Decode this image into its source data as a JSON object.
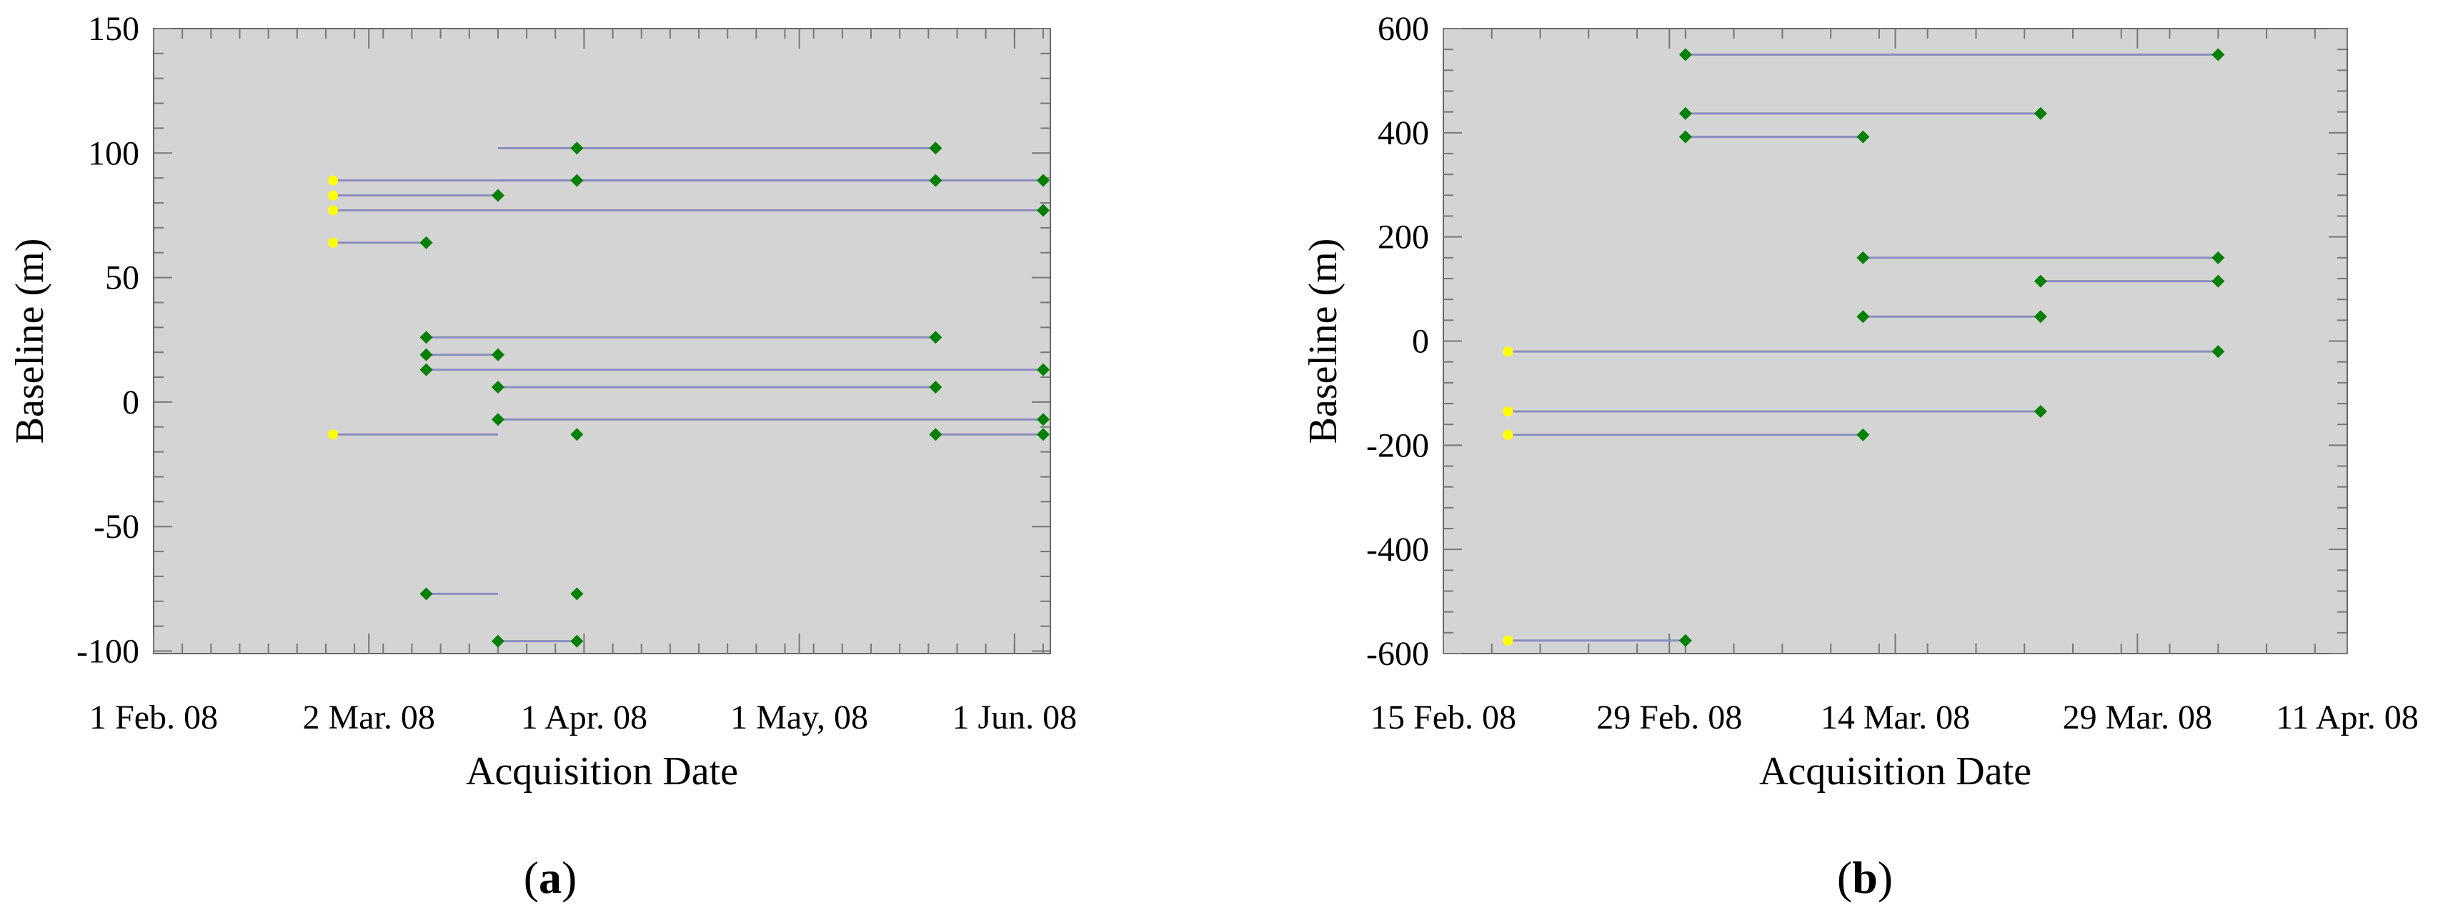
{
  "chart_data": [
    {
      "panel": "a",
      "type": "scatter",
      "title": "",
      "xlabel": "Acquisition Date",
      "ylabel": "Baseline (m)",
      "xlim": [
        "2008-02-01",
        "2008-06-05"
      ],
      "ylim": [
        -101,
        150
      ],
      "x_ticks": [
        {
          "date": "2008-02-01",
          "label": "1 Feb. 08"
        },
        {
          "date": "2008-03-02",
          "label": "2 Mar. 08"
        },
        {
          "date": "2008-04-01",
          "label": "1 Apr. 08"
        },
        {
          "date": "2008-05-01",
          "label": "1 May, 08"
        },
        {
          "date": "2008-05-31",
          "label": "1 Jun. 08"
        }
      ],
      "y_ticks": [
        150,
        100,
        50,
        0,
        -50,
        -100
      ],
      "colors": {
        "plot_bg": "#d4d4d4",
        "line": "#8c8cc0",
        "master": "#ffff00",
        "slave": "#008000"
      },
      "pairs": [
        {
          "x1": "2008-03-20",
          "y1": 102,
          "x2": "2008-05-20",
          "y2": 102
        },
        {
          "x1": "2008-02-26",
          "y1": 89,
          "x2": "2008-06-04",
          "y2": 89
        },
        {
          "x1": "2008-03-20",
          "y1": 89,
          "x2": "2008-05-20",
          "y2": 89
        },
        {
          "x1": "2008-02-26",
          "y1": 83,
          "x2": "2008-03-20",
          "y2": 83
        },
        {
          "x1": "2008-02-26",
          "y1": 77,
          "x2": "2008-06-04",
          "y2": 77
        },
        {
          "x1": "2008-02-26",
          "y1": 64,
          "x2": "2008-03-10",
          "y2": 64
        },
        {
          "x1": "2008-03-10",
          "y1": 26,
          "x2": "2008-05-20",
          "y2": 26
        },
        {
          "x1": "2008-03-10",
          "y1": 19,
          "x2": "2008-03-20",
          "y2": 19
        },
        {
          "x1": "2008-03-10",
          "y1": 13,
          "x2": "2008-06-04",
          "y2": 13
        },
        {
          "x1": "2008-03-20",
          "y1": 6,
          "x2": "2008-05-20",
          "y2": 6
        },
        {
          "x1": "2008-03-20",
          "y1": -7,
          "x2": "2008-06-04",
          "y2": -7
        },
        {
          "x1": "2008-02-26",
          "y1": -13,
          "x2": "2008-03-20",
          "y2": -13
        },
        {
          "x1": "2008-05-20",
          "y1": -13,
          "x2": "2008-06-04",
          "y2": -13
        },
        {
          "x1": "2008-03-10",
          "y1": -77,
          "x2": "2008-03-20",
          "y2": -77
        },
        {
          "x1": "2008-03-20",
          "y1": -96,
          "x2": "2008-03-31",
          "y2": -96
        }
      ],
      "master_points": [
        {
          "x": "2008-02-26",
          "y": 89
        },
        {
          "x": "2008-02-26",
          "y": 83
        },
        {
          "x": "2008-02-26",
          "y": 77
        },
        {
          "x": "2008-02-26",
          "y": 64
        },
        {
          "x": "2008-02-26",
          "y": -13
        }
      ],
      "slave_points": [
        {
          "x": "2008-03-31",
          "y": 102
        },
        {
          "x": "2008-05-20",
          "y": 102
        },
        {
          "x": "2008-03-31",
          "y": 89
        },
        {
          "x": "2008-05-20",
          "y": 89
        },
        {
          "x": "2008-06-04",
          "y": 89
        },
        {
          "x": "2008-03-20",
          "y": 83
        },
        {
          "x": "2008-06-04",
          "y": 77
        },
        {
          "x": "2008-03-10",
          "y": 64
        },
        {
          "x": "2008-03-10",
          "y": 26
        },
        {
          "x": "2008-05-20",
          "y": 26
        },
        {
          "x": "2008-03-10",
          "y": 19
        },
        {
          "x": "2008-03-20",
          "y": 19
        },
        {
          "x": "2008-03-10",
          "y": 13
        },
        {
          "x": "2008-06-04",
          "y": 13
        },
        {
          "x": "2008-03-20",
          "y": 6
        },
        {
          "x": "2008-05-20",
          "y": 6
        },
        {
          "x": "2008-03-20",
          "y": -7
        },
        {
          "x": "2008-06-04",
          "y": -7
        },
        {
          "x": "2008-03-31",
          "y": -13
        },
        {
          "x": "2008-05-20",
          "y": -13
        },
        {
          "x": "2008-06-04",
          "y": -13
        },
        {
          "x": "2008-03-10",
          "y": -77
        },
        {
          "x": "2008-03-31",
          "y": -77
        },
        {
          "x": "2008-03-20",
          "y": -96
        },
        {
          "x": "2008-03-31",
          "y": -96
        }
      ]
    },
    {
      "panel": "b",
      "type": "scatter",
      "title": "",
      "xlabel": "Acquisition Date",
      "ylabel": "Baseline (m)",
      "xlim": [
        "2008-02-15",
        "2008-04-11"
      ],
      "ylim": [
        -600,
        600
      ],
      "x_ticks": [
        {
          "date": "2008-02-15",
          "label": "15 Feb. 08"
        },
        {
          "date": "2008-02-29",
          "label": "29 Feb. 08"
        },
        {
          "date": "2008-03-14",
          "label": "14 Mar. 08"
        },
        {
          "date": "2008-03-29",
          "label": "29 Mar. 08"
        },
        {
          "date": "2008-04-11",
          "label": "11 Apr. 08"
        }
      ],
      "y_ticks": [
        600,
        400,
        200,
        0,
        -200,
        -400,
        -600
      ],
      "colors": {
        "plot_bg": "#d4d4d4",
        "line": "#8c8cc0",
        "master": "#ffff00",
        "slave": "#008000"
      },
      "pairs": [
        {
          "x1": "2008-03-01",
          "y1": 550,
          "x2": "2008-04-03",
          "y2": 550
        },
        {
          "x1": "2008-03-01",
          "y1": 437,
          "x2": "2008-03-23",
          "y2": 437
        },
        {
          "x1": "2008-03-01",
          "y1": 392,
          "x2": "2008-03-12",
          "y2": 392
        },
        {
          "x1": "2008-03-12",
          "y1": 160,
          "x2": "2008-04-03",
          "y2": 160
        },
        {
          "x1": "2008-03-23",
          "y1": 115,
          "x2": "2008-04-03",
          "y2": 115
        },
        {
          "x1": "2008-03-12",
          "y1": 47,
          "x2": "2008-03-23",
          "y2": 47
        },
        {
          "x1": "2008-02-19",
          "y1": -20,
          "x2": "2008-04-03",
          "y2": -20
        },
        {
          "x1": "2008-02-19",
          "y1": -135,
          "x2": "2008-03-23",
          "y2": -135
        },
        {
          "x1": "2008-02-19",
          "y1": -180,
          "x2": "2008-03-12",
          "y2": -180
        },
        {
          "x1": "2008-02-19",
          "y1": -575,
          "x2": "2008-03-01",
          "y2": -575
        }
      ],
      "master_points": [
        {
          "x": "2008-02-19",
          "y": -20
        },
        {
          "x": "2008-02-19",
          "y": -135
        },
        {
          "x": "2008-02-19",
          "y": -180
        },
        {
          "x": "2008-02-19",
          "y": -575
        }
      ],
      "slave_points": [
        {
          "x": "2008-03-01",
          "y": 550
        },
        {
          "x": "2008-04-03",
          "y": 550
        },
        {
          "x": "2008-03-01",
          "y": 437
        },
        {
          "x": "2008-03-23",
          "y": 437
        },
        {
          "x": "2008-03-01",
          "y": 392
        },
        {
          "x": "2008-03-12",
          "y": 392
        },
        {
          "x": "2008-03-12",
          "y": 160
        },
        {
          "x": "2008-04-03",
          "y": 160
        },
        {
          "x": "2008-03-23",
          "y": 115
        },
        {
          "x": "2008-04-03",
          "y": 115
        },
        {
          "x": "2008-03-12",
          "y": 47
        },
        {
          "x": "2008-03-23",
          "y": 47
        },
        {
          "x": "2008-04-03",
          "y": -20
        },
        {
          "x": "2008-03-23",
          "y": -135
        },
        {
          "x": "2008-03-12",
          "y": -180
        },
        {
          "x": "2008-03-01",
          "y": -575
        }
      ]
    }
  ],
  "labels": {
    "panel_a": {
      "open": "(",
      "letter": "a",
      "close": ")"
    },
    "panel_b": {
      "open": "(",
      "letter": "b",
      "close": ")"
    }
  }
}
